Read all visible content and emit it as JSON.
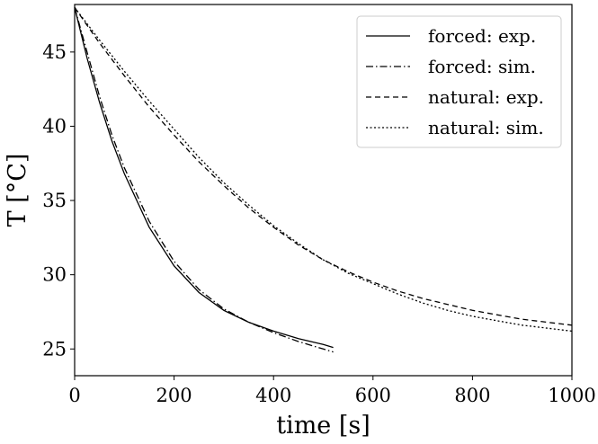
{
  "chart_data": {
    "type": "line",
    "title": "",
    "xlabel": "time [s]",
    "ylabel": "T [°C]",
    "xlim": [
      0,
      1000
    ],
    "ylim": [
      23.2,
      48.2
    ],
    "xticks": [
      0,
      200,
      400,
      600,
      800,
      1000
    ],
    "yticks": [
      25,
      30,
      35,
      40,
      45
    ],
    "grid": false,
    "legend_position": "top-right",
    "series": [
      {
        "name": "forced: exp.",
        "style": "solid",
        "x": [
          0,
          25,
          50,
          75,
          100,
          150,
          200,
          250,
          300,
          350,
          400,
          450,
          500,
          520
        ],
        "y": [
          48.0,
          44.6,
          41.6,
          39.0,
          36.8,
          33.2,
          30.6,
          28.8,
          27.6,
          26.8,
          26.2,
          25.7,
          25.3,
          25.1
        ]
      },
      {
        "name": "forced: sim.",
        "style": "dashdot",
        "x": [
          0,
          25,
          50,
          75,
          100,
          150,
          200,
          250,
          300,
          350,
          400,
          450,
          500,
          520
        ],
        "y": [
          48.0,
          45.0,
          42.0,
          39.4,
          37.2,
          33.6,
          30.9,
          29.0,
          27.7,
          26.8,
          26.1,
          25.5,
          25.0,
          24.8
        ]
      },
      {
        "name": "natural: exp.",
        "style": "dashed",
        "x": [
          0,
          50,
          100,
          150,
          200,
          250,
          300,
          350,
          400,
          450,
          500,
          550,
          600,
          650,
          700,
          750,
          800,
          850,
          900,
          950,
          1000
        ],
        "y": [
          48.0,
          45.6,
          43.4,
          41.3,
          39.4,
          37.6,
          36.0,
          34.5,
          33.2,
          32.0,
          31.0,
          30.2,
          29.5,
          28.9,
          28.4,
          28.0,
          27.6,
          27.3,
          27.0,
          26.8,
          26.6
        ]
      },
      {
        "name": "natural: sim.",
        "style": "dotted",
        "x": [
          0,
          50,
          100,
          150,
          200,
          250,
          300,
          350,
          400,
          450,
          500,
          550,
          600,
          650,
          700,
          750,
          800,
          850,
          900,
          950,
          1000
        ],
        "y": [
          48.0,
          45.8,
          43.7,
          41.7,
          39.8,
          37.9,
          36.2,
          34.7,
          33.3,
          32.1,
          31.0,
          30.1,
          29.4,
          28.7,
          28.1,
          27.6,
          27.2,
          26.9,
          26.6,
          26.4,
          26.2
        ]
      }
    ]
  }
}
